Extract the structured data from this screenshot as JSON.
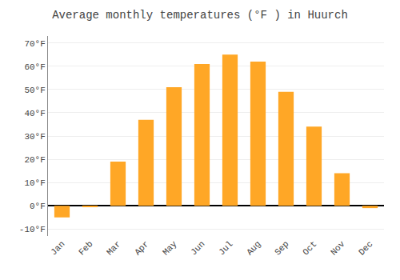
{
  "chart_data": {
    "type": "bar",
    "title": "Average monthly temperatures (°F ) in Huurch",
    "categories": [
      "Jan",
      "Feb",
      "Mar",
      "Apr",
      "May",
      "Jun",
      "Jul",
      "Aug",
      "Sep",
      "Oct",
      "Nov",
      "Dec"
    ],
    "values": [
      -5,
      -0.5,
      19,
      37,
      51,
      61,
      65,
      62,
      49,
      34,
      14,
      -1
    ],
    "color": "#FFA726",
    "ylim": [
      -13,
      73
    ],
    "yticks": [
      {
        "value": -10,
        "label": "-10°F"
      },
      {
        "value": 0,
        "label": "0°F"
      },
      {
        "value": 10,
        "label": "10°F"
      },
      {
        "value": 20,
        "label": "20°F"
      },
      {
        "value": 30,
        "label": "30°F"
      },
      {
        "value": 40,
        "label": "40°F"
      },
      {
        "value": 50,
        "label": "50°F"
      },
      {
        "value": 60,
        "label": "60°F"
      },
      {
        "value": 70,
        "label": "70°F"
      }
    ],
    "grid": true
  }
}
